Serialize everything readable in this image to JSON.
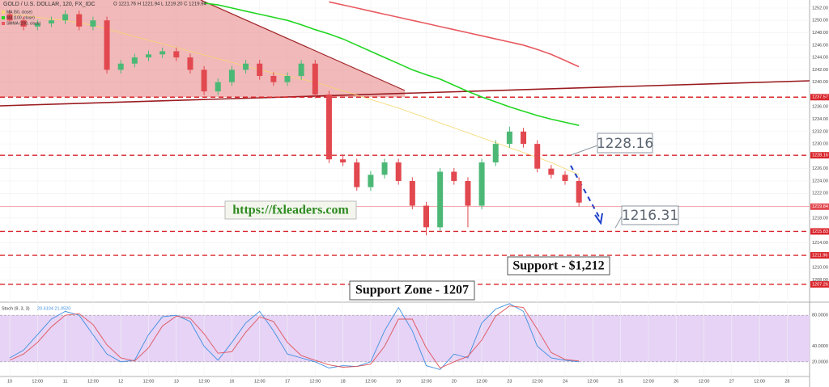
{
  "chart_data": {
    "type": "candlestick",
    "title": "GOLD / U.S. DOLLAR, 120, FX_IDC",
    "subtitle": "O 1221.76 H 1221.94 L 1219.20 C 1219.94",
    "categories": [
      "10",
      null,
      "12:00",
      null,
      "11",
      null,
      "12:00",
      null,
      "12",
      null,
      "12:00",
      null,
      "13",
      null,
      "12:00",
      null,
      "16",
      null,
      "12:00",
      null,
      "17",
      null,
      "12:00",
      null,
      "18",
      null,
      "12:00",
      null,
      "19",
      null,
      "12:00",
      null,
      "20",
      null,
      "12:00",
      null,
      "23",
      null,
      "12:00",
      null,
      "24",
      null,
      "12:00",
      null,
      "25",
      null,
      "12:00",
      null,
      "26",
      null,
      "12:00",
      null,
      "27",
      null,
      "12:00",
      null,
      "28",
      null
    ],
    "open": [
      1251,
      1250,
      1249,
      1249.5,
      1250,
      1251,
      1249,
      1250,
      1242,
      1243,
      1244,
      1244.5,
      1245,
      1244,
      1242,
      1238.5,
      1240,
      1242,
      1243,
      1241,
      1240,
      1241,
      1243,
      1238,
      1227.5,
      1227,
      1223,
      1225,
      1227,
      1224,
      1220,
      1216.5,
      1225.5,
      1224,
      1220,
      1227,
      1230,
      1232,
      1230,
      1226,
      1225,
      1224,
      null,
      null,
      null,
      null,
      null,
      null,
      null,
      null,
      null,
      null,
      null,
      null,
      null,
      null,
      null,
      null
    ],
    "high": [
      1251.6,
      1250.6,
      1250.1,
      1250.6,
      1251.6,
      1251.6,
      1250.6,
      1250.6,
      1243.6,
      1244.6,
      1245.1,
      1245.6,
      1245.6,
      1244.6,
      1242.6,
      1240.6,
      1242.6,
      1243.6,
      1243.6,
      1241.6,
      1241.6,
      1243.6,
      1243.6,
      1238.6,
      1228.1,
      1227.6,
      1225.6,
      1227.6,
      1227.6,
      1224.6,
      1220.6,
      1226.1,
      1226.1,
      1224.6,
      1227.6,
      1230.6,
      1232.8,
      1232.6,
      1230.6,
      1226.6,
      1225.6,
      1224.6,
      null,
      null,
      null,
      null,
      null,
      null,
      null,
      null,
      null,
      null,
      null,
      null,
      null,
      null,
      null,
      null
    ],
    "low": [
      1249.4,
      1248.4,
      1248.4,
      1248.9,
      1249.4,
      1248.4,
      1248.4,
      1241.4,
      1241.4,
      1242.4,
      1243.4,
      1243.9,
      1243.4,
      1241.4,
      1237.9,
      1237.9,
      1239.4,
      1241.4,
      1240.4,
      1239.4,
      1239.4,
      1240.4,
      1237.4,
      1226.9,
      1226.4,
      1222.4,
      1222.4,
      1224.4,
      1223.4,
      1219.4,
      1215.2,
      1215.9,
      1223.4,
      1216.5,
      1219.4,
      1226.4,
      1229.4,
      1229.4,
      1225.4,
      1224.4,
      1223.4,
      1219.9,
      null,
      null,
      null,
      null,
      null,
      null,
      null,
      null,
      null,
      null,
      null,
      null,
      null,
      null,
      null,
      null
    ],
    "close": [
      1250,
      1249,
      1249.5,
      1250,
      1251,
      1249,
      1250,
      1242,
      1243,
      1244,
      1244.5,
      1245,
      1244,
      1242,
      1238.5,
      1240,
      1242,
      1243,
      1241,
      1240,
      1241,
      1243,
      1238,
      1227.5,
      1227,
      1223,
      1225,
      1227,
      1224,
      1220,
      1216.5,
      1225.5,
      1224,
      1220,
      1227,
      1230,
      1232,
      1230,
      1226,
      1225,
      1224,
      1220.5,
      null,
      null,
      null,
      null,
      null,
      null,
      null,
      null,
      null,
      null,
      null,
      null,
      null,
      null,
      null,
      null
    ],
    "up_color": "#4cb876",
    "down_color": "#e2484f",
    "ylim": [
      1204.9,
      1253.3
    ],
    "yticks": [
      {
        "value": 1208,
        "label": "1208.00"
      },
      {
        "value": 1210,
        "label": "1210.00"
      },
      {
        "value": 1214,
        "label": "1214.00"
      },
      {
        "value": 1218,
        "label": "1218.00"
      },
      {
        "value": 1222,
        "label": "1222.00"
      },
      {
        "value": 1224,
        "label": "1224.00"
      },
      {
        "value": 1226,
        "label": "1226.00"
      },
      {
        "value": 1230,
        "label": "1230.00"
      },
      {
        "value": 1232,
        "label": "1232.00"
      },
      {
        "value": 1234,
        "label": "1234.00"
      },
      {
        "value": 1236,
        "label": "1236.00"
      },
      {
        "value": 1240,
        "label": "1240.00"
      },
      {
        "value": 1242,
        "label": "1242.00"
      },
      {
        "value": 1244,
        "label": "1244.00"
      },
      {
        "value": 1246,
        "label": "1246.00"
      },
      {
        "value": 1248,
        "label": "1248.00"
      },
      {
        "value": 1250,
        "label": "1250.00"
      },
      {
        "value": 1252,
        "label": "1252.00"
      }
    ],
    "levels": [
      1237.57,
      1228.16,
      1215.83,
      1211.96,
      1207.26
    ],
    "level_color": "#d9262c",
    "last": 1219.84,
    "series": [
      {
        "name": "MA (50, close)",
        "color": "#f5d76e",
        "values": [
          1251,
          1250.8,
          1250.5,
          1250.2,
          1250,
          1249.6,
          1249.2,
          1248.6,
          1248,
          1247.4,
          1246.8,
          1246.2,
          1245.6,
          1245,
          1244.4,
          1243.8,
          1243.2,
          1242.6,
          1242,
          1241.5,
          1241,
          1240.5,
          1240,
          1239.3,
          1238.6,
          1237.9,
          1237.2,
          1236.5,
          1235.8,
          1235,
          1234.2,
          1233.4,
          1232.6,
          1231.8,
          1231,
          1230.2,
          1229.4,
          1228.6,
          1227.8,
          1227,
          1226,
          1225,
          null,
          null,
          null,
          null,
          null,
          null,
          null,
          null,
          null,
          null,
          null,
          null,
          null,
          null,
          null,
          null
        ]
      },
      {
        "name": "MA (100, close)",
        "color": "#22d622",
        "values": [
          null,
          null,
          null,
          null,
          null,
          null,
          null,
          null,
          null,
          null,
          null,
          null,
          null,
          null,
          1252.8,
          1252.5,
          1252,
          1251.5,
          1251,
          1250.5,
          1250,
          1249.3,
          1248.5,
          1247.8,
          1247,
          1246,
          1245,
          1244,
          1243,
          1242,
          1241.2,
          1240.5,
          1239.5,
          1238.5,
          1237.6,
          1236.8,
          1236,
          1235.3,
          1234.6,
          1234,
          1233.5,
          1233,
          null,
          null,
          null,
          null,
          null,
          null,
          null,
          null,
          null,
          null,
          null,
          null,
          null,
          null,
          null,
          null
        ]
      },
      {
        "name": "SMMA (200, close)",
        "color": "#e8595f",
        "values": [
          null,
          null,
          null,
          null,
          null,
          null,
          null,
          null,
          null,
          null,
          null,
          null,
          null,
          null,
          null,
          null,
          null,
          null,
          null,
          null,
          null,
          null,
          null,
          1253,
          1252.5,
          1252,
          1251.5,
          1251,
          1250.5,
          1250,
          1249.5,
          1249,
          1248.5,
          1248,
          1247.5,
          1247,
          1246.5,
          1246,
          1245.3,
          1244.5,
          1243.5,
          1242.5,
          null,
          null,
          null,
          null,
          null,
          null,
          null,
          null,
          null,
          null,
          null,
          null,
          null,
          null,
          null,
          null
        ]
      }
    ],
    "annotations": [
      "1228.16",
      "1216.31",
      "https://fxleaders.com",
      "Support - $1,212",
      "Support Zone - 1207"
    ],
    "indicator": {
      "name": "Stoch (9, 3, 3)",
      "legend_values": "20.6104  21.0520",
      "ylim": [
        0,
        100
      ],
      "yticks": [
        {
          "value": 80,
          "label": "80.0000"
        },
        {
          "value": 40,
          "label": "40.0000"
        },
        {
          "value": 20,
          "label": "20.0000"
        }
      ],
      "band_color": "#e6d3f6",
      "series": [
        {
          "color": "#3f8fe0",
          "values": [
            25,
            35,
            55,
            75,
            85,
            80,
            55,
            30,
            20,
            22,
            55,
            78,
            80,
            72,
            40,
            22,
            45,
            70,
            85,
            60,
            30,
            25,
            20,
            12,
            15,
            14,
            20,
            60,
            90,
            60,
            15,
            10,
            30,
            25,
            70,
            88,
            95,
            85,
            40,
            25,
            22,
            20,
            null,
            null,
            null,
            null,
            null,
            null,
            null,
            null,
            null,
            null,
            null,
            null,
            null,
            null,
            null,
            null
          ]
        },
        {
          "color": "#e0545a",
          "values": [
            22,
            30,
            45,
            65,
            80,
            82,
            68,
            42,
            25,
            21,
            38,
            66,
            79,
            76,
            56,
            31,
            33,
            58,
            78,
            72,
            45,
            28,
            22,
            16,
            13,
            14,
            17,
            40,
            75,
            75,
            38,
            12,
            20,
            27,
            48,
            79,
            92,
            90,
            62,
            32,
            23,
            21,
            null,
            null,
            null,
            null,
            null,
            null,
            null,
            null,
            null,
            null,
            null,
            null,
            null,
            null,
            null,
            null
          ]
        }
      ]
    }
  }
}
